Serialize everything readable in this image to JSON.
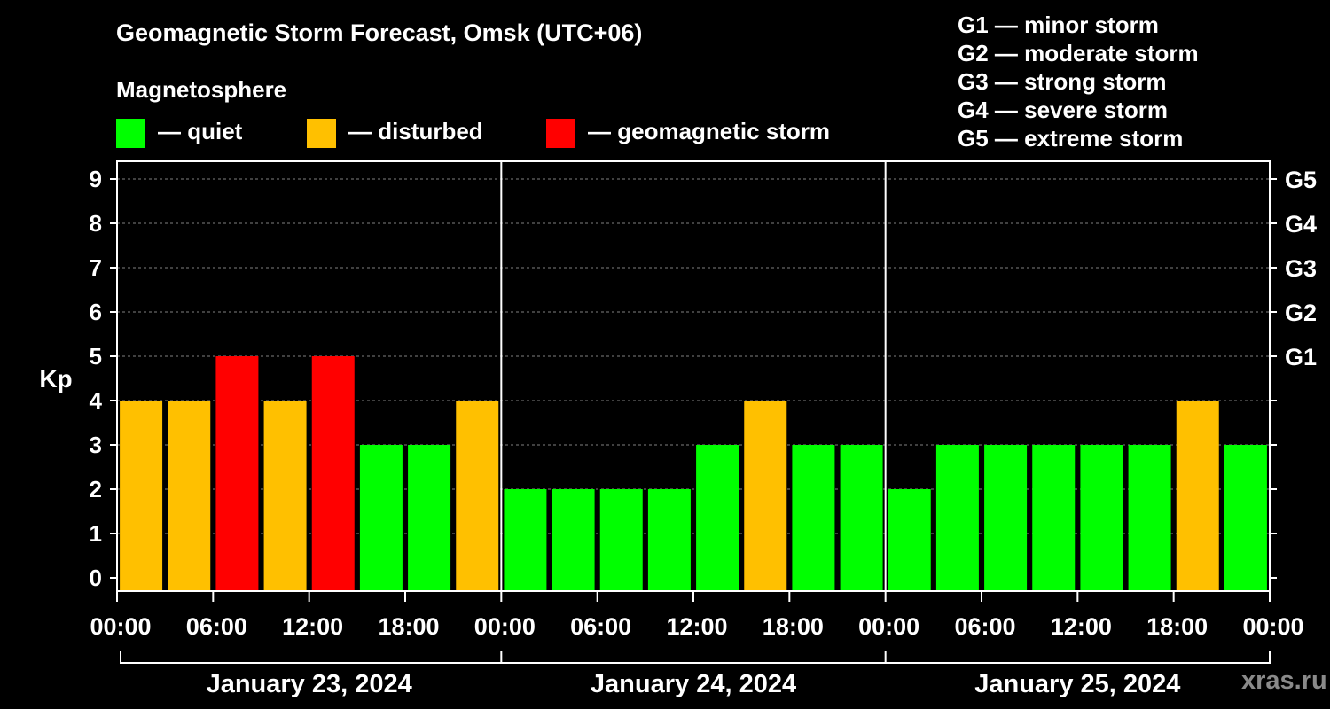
{
  "header": {
    "title": "Geomagnetic Storm Forecast, Omsk (UTC+06)",
    "subtitle": "Magnetosphere"
  },
  "legend": [
    {
      "label": "— quiet",
      "color": "#00ff00"
    },
    {
      "label": "— disturbed",
      "color": "#ffc000"
    },
    {
      "label": "— geomagnetic storm",
      "color": "#ff0000"
    }
  ],
  "storm_levels": [
    "G1 — minor storm",
    "G2 — moderate storm",
    "G3 — strong storm",
    "G4 — severe storm",
    "G5 — extreme storm"
  ],
  "watermark": "xras.ru",
  "chart_data": {
    "type": "bar",
    "title": "Geomagnetic Storm Forecast, Omsk (UTC+06)",
    "ylabel": "Kp",
    "ylim": [
      0,
      9
    ],
    "yticks": [
      "0",
      "1",
      "2",
      "3",
      "4",
      "5",
      "6",
      "7",
      "8",
      "9"
    ],
    "right_ticks": [
      {
        "kp": 5,
        "label": "G1"
      },
      {
        "kp": 6,
        "label": "G2"
      },
      {
        "kp": 7,
        "label": "G3"
      },
      {
        "kp": 8,
        "label": "G4"
      },
      {
        "kp": 9,
        "label": "G5"
      }
    ],
    "xticks": [
      "00:00",
      "06:00",
      "12:00",
      "18:00",
      "00:00",
      "06:00",
      "12:00",
      "18:00",
      "00:00",
      "06:00",
      "12:00",
      "18:00",
      "00:00"
    ],
    "days": [
      "January 23, 2024",
      "January 24, 2024",
      "January 25, 2024"
    ],
    "interval_hours": 3,
    "values": [
      4,
      4,
      5,
      4,
      5,
      3,
      3,
      4,
      2,
      2,
      2,
      2,
      3,
      4,
      3,
      3,
      2,
      3,
      3,
      3,
      3,
      3,
      4,
      3
    ],
    "color_thresholds": {
      "quiet_max": 3,
      "disturbed": 4,
      "storm_min": 5
    },
    "grid": true
  }
}
